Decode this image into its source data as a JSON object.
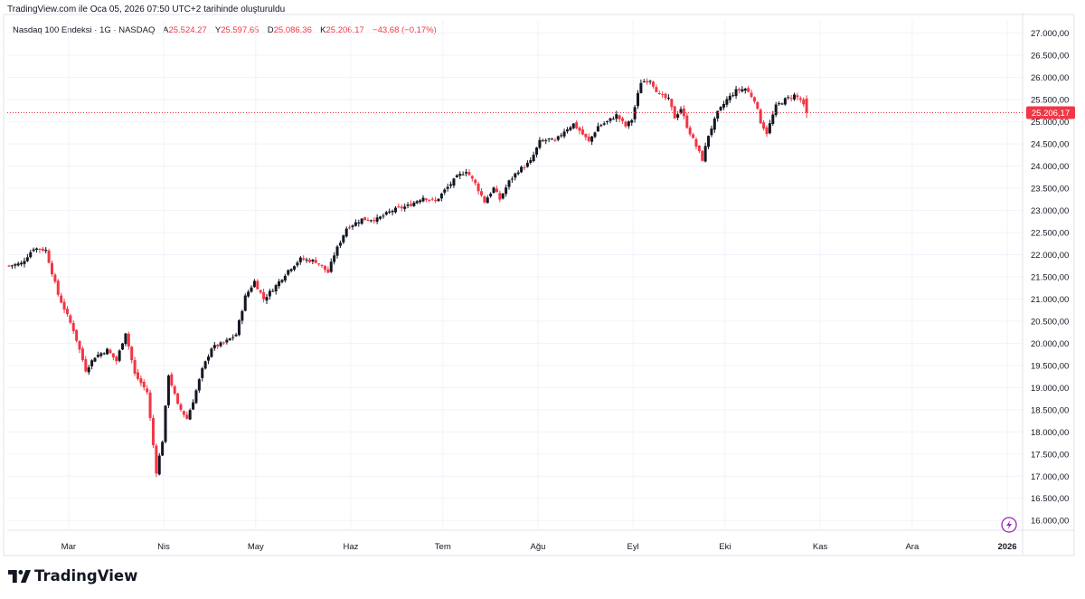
{
  "caption": "TradingView.com ile Oca 05, 2026 07:50 UTC+2 tarihinde oluşturuldu",
  "legend": {
    "symbol": "Nasdaq 100 Endeksi · 1G · NASDAQ",
    "open_label": "A",
    "open": "25.524,27",
    "high_label": "Y",
    "high": "25.597,65",
    "low_label": "D",
    "low": "25.086,36",
    "close_label": "K",
    "close": "25.206,17",
    "change": "−43,68 (−0,17%)"
  },
  "brand": "TradingView",
  "colors": {
    "up": "#131722",
    "down": "#f23645",
    "grid": "#f0f3fa",
    "price_line": "#f23645",
    "price_badge": "#f23645",
    "lightning_badge": "#9c27b0"
  },
  "icons": [
    "tradingview-logo-icon",
    "lightning-icon"
  ],
  "chart_data": {
    "type": "candlestick",
    "title": "Nasdaq 100 Endeksi · 1G · NASDAQ",
    "y_axis_side": "right",
    "ylim": [
      15800,
      27300
    ],
    "y_ticks": [
      16000,
      16500,
      17000,
      17500,
      18000,
      18500,
      19000,
      19500,
      20000,
      20500,
      21000,
      21500,
      22000,
      22500,
      23000,
      23500,
      24000,
      24500,
      25000,
      25500,
      26000,
      26500,
      27000
    ],
    "y_tick_labels": [
      "16.000,00",
      "16.500,00",
      "17.000,00",
      "17.500,00",
      "18.000,00",
      "18.500,00",
      "19.000,00",
      "19.500,00",
      "20.000,00",
      "20.500,00",
      "21.000,00",
      "21.500,00",
      "22.000,00",
      "22.500,00",
      "23.000,00",
      "23.500,00",
      "24.000,00",
      "24.500,00",
      "25.000,00",
      "25.500,00",
      "26.000,00",
      "26.500,00",
      "27.000,00"
    ],
    "x_labels": [
      "Mar",
      "Nis",
      "May",
      "Haz",
      "Tem",
      "Ağu",
      "Eyl",
      "Eki",
      "Kas",
      "Ara",
      "2026"
    ],
    "x_label_days": [
      20,
      51,
      81,
      112,
      142,
      173,
      204,
      234,
      265,
      295,
      326
    ],
    "x_range_days": [
      0,
      331
    ],
    "grid": true,
    "last_price": 25206.17,
    "last_price_label": "25.206,17",
    "anchors": [
      [
        0,
        21750
      ],
      [
        4,
        21800
      ],
      [
        8,
        22150
      ],
      [
        12,
        22100
      ],
      [
        16,
        21100
      ],
      [
        21,
        20300
      ],
      [
        25,
        19400
      ],
      [
        28,
        19700
      ],
      [
        32,
        19850
      ],
      [
        35,
        19600
      ],
      [
        38,
        20250
      ],
      [
        41,
        19300
      ],
      [
        45,
        18900
      ],
      [
        48,
        17100
      ],
      [
        50,
        17800
      ],
      [
        52,
        19300
      ],
      [
        55,
        18600
      ],
      [
        58,
        18300
      ],
      [
        60,
        18700
      ],
      [
        63,
        19400
      ],
      [
        66,
        19900
      ],
      [
        70,
        20000
      ],
      [
        74,
        20200
      ],
      [
        77,
        21050
      ],
      [
        80,
        21400
      ],
      [
        83,
        21000
      ],
      [
        87,
        21300
      ],
      [
        91,
        21650
      ],
      [
        95,
        21900
      ],
      [
        100,
        21850
      ],
      [
        104,
        21600
      ],
      [
        106,
        22000
      ],
      [
        110,
        22600
      ],
      [
        115,
        22800
      ],
      [
        120,
        22800
      ],
      [
        125,
        23000
      ],
      [
        130,
        23100
      ],
      [
        135,
        23300
      ],
      [
        139,
        23200
      ],
      [
        142,
        23450
      ],
      [
        146,
        23750
      ],
      [
        149,
        23900
      ],
      [
        152,
        23600
      ],
      [
        155,
        23200
      ],
      [
        158,
        23500
      ],
      [
        160,
        23250
      ],
      [
        163,
        23650
      ],
      [
        166,
        23900
      ],
      [
        170,
        24100
      ],
      [
        173,
        24550
      ],
      [
        176,
        24600
      ],
      [
        178,
        24550
      ],
      [
        181,
        24800
      ],
      [
        184,
        24950
      ],
      [
        186,
        24800
      ],
      [
        189,
        24550
      ],
      [
        192,
        24900
      ],
      [
        195,
        25000
      ],
      [
        198,
        25150
      ],
      [
        201,
        24900
      ],
      [
        203,
        25050
      ],
      [
        206,
        25900
      ],
      [
        209,
        25950
      ],
      [
        212,
        25600
      ],
      [
        215,
        25500
      ],
      [
        217,
        25100
      ],
      [
        219,
        25300
      ],
      [
        221,
        24900
      ],
      [
        223,
        24600
      ],
      [
        226,
        24150
      ],
      [
        228,
        24700
      ],
      [
        231,
        25200
      ],
      [
        234,
        25500
      ],
      [
        237,
        25700
      ],
      [
        240,
        25750
      ],
      [
        243,
        25500
      ],
      [
        245,
        25000
      ],
      [
        247,
        24750
      ],
      [
        250,
        25350
      ],
      [
        253,
        25500
      ],
      [
        256,
        25600
      ],
      [
        258,
        25500
      ],
      [
        260,
        25206
      ]
    ]
  }
}
